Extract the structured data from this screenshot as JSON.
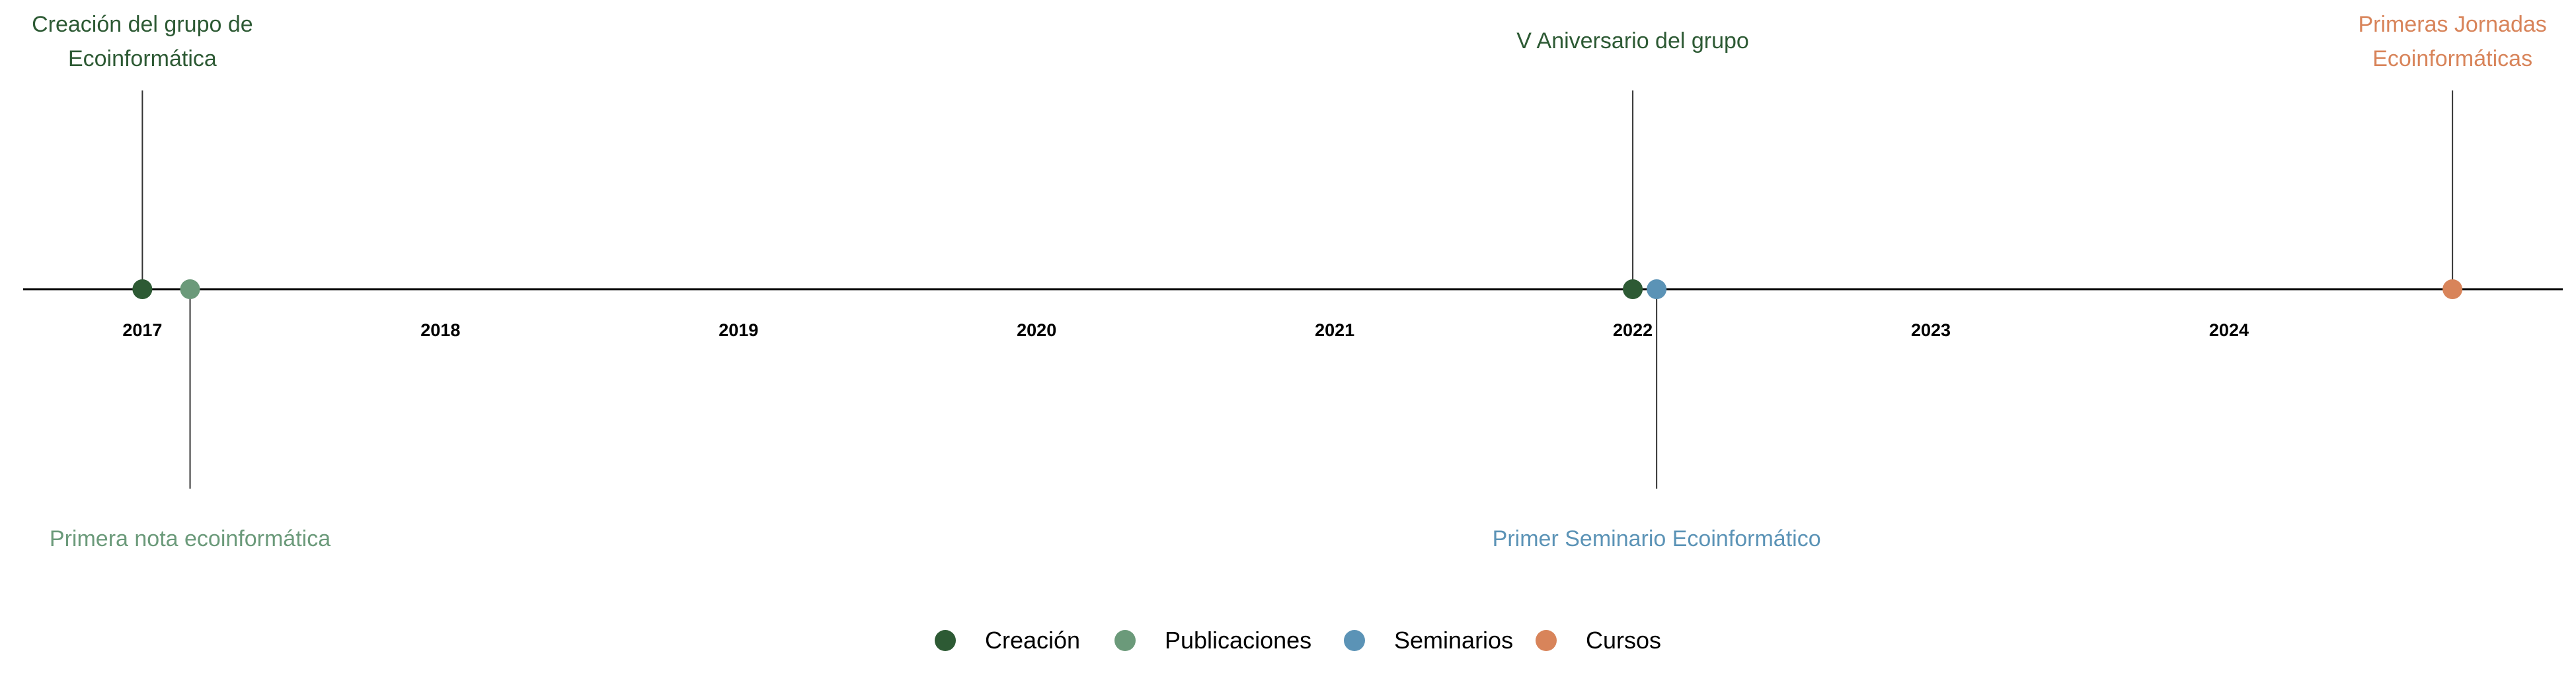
{
  "chart_data": {
    "type": "timeline",
    "x_unit": "year",
    "xlim": [
      2016.6,
      2025.12
    ],
    "ticks": [
      "2017",
      "2018",
      "2019",
      "2020",
      "2021",
      "2022",
      "2023",
      "2024"
    ],
    "grid": false,
    "legend_position": "bottom",
    "categories": [
      {
        "name": "Creación",
        "color": "#2d5a34"
      },
      {
        "name": "Publicaciones",
        "color": "#6b9a7a"
      },
      {
        "name": "Seminarios",
        "color": "#5b93b6"
      },
      {
        "name": "Cursos",
        "color": "#d8845a"
      }
    ],
    "events": [
      {
        "x": 2017.0,
        "category": "Creación",
        "side": "above",
        "label": [
          "Creación del grupo de",
          "Ecoinformática"
        ]
      },
      {
        "x": 2017.16,
        "category": "Publicaciones",
        "side": "below",
        "label": [
          "Primera nota ecoinformática"
        ]
      },
      {
        "x": 2022.0,
        "category": "Creación",
        "side": "above",
        "label": [
          "V Aniversario del grupo"
        ]
      },
      {
        "x": 2022.08,
        "category": "Seminarios",
        "side": "below",
        "label": [
          "Primer Seminario Ecoinformático"
        ]
      },
      {
        "x": 2024.75,
        "category": "Cursos",
        "side": "above",
        "label": [
          "Primeras Jornadas",
          "Ecoinformáticas"
        ]
      }
    ]
  }
}
